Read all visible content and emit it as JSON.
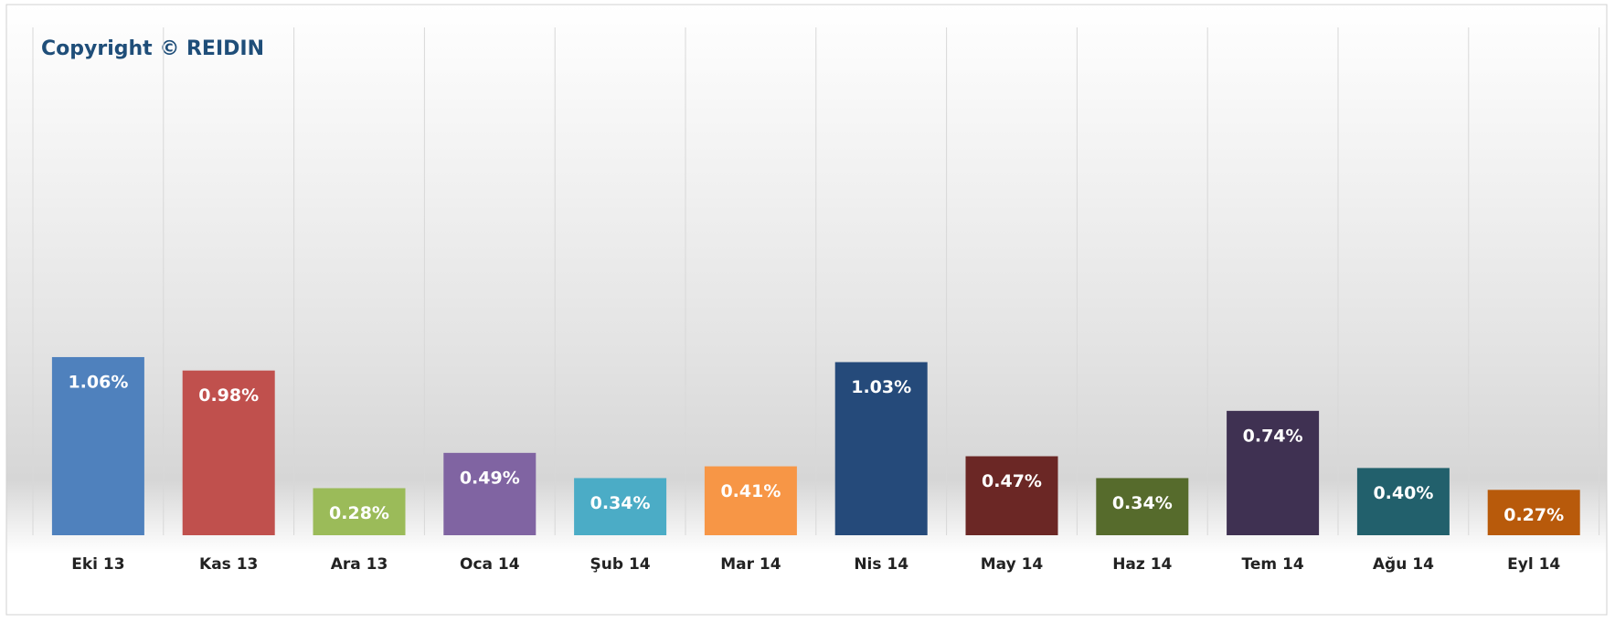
{
  "chart_data": {
    "type": "bar",
    "title": "Copyright © REIDIN",
    "categories": [
      "Eki 13",
      "Kas 13",
      "Ara 13",
      "Oca 14",
      "Şub 14",
      "Mar 14",
      "Nis 14",
      "May 14",
      "Haz 14",
      "Tem 14",
      "Ağu 14",
      "Eyl 14"
    ],
    "values": [
      1.06,
      0.98,
      0.28,
      0.49,
      0.34,
      0.41,
      1.03,
      0.47,
      0.34,
      0.74,
      0.4,
      0.27
    ],
    "value_labels": [
      "1.06%",
      "0.98%",
      "0.28%",
      "0.49%",
      "0.34%",
      "0.41%",
      "1.03%",
      "0.47%",
      "0.34%",
      "0.74%",
      "0.40%",
      "0.27%"
    ],
    "colors": [
      "#4f81bd",
      "#c0504d",
      "#9bbb59",
      "#8064a2",
      "#4bacc6",
      "#f79646",
      "#254a7a",
      "#6b2725",
      "#566b2c",
      "#3f3152",
      "#22606c",
      "#b85a0b"
    ],
    "grid": true
  }
}
